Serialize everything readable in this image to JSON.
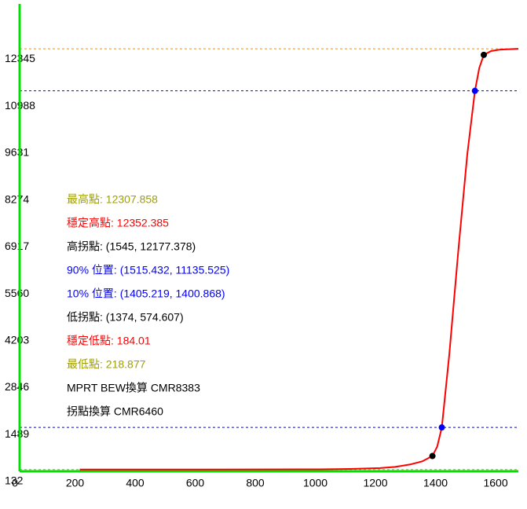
{
  "chart_data": {
    "type": "line",
    "x": [
      200,
      400,
      600,
      800,
      1000,
      1100,
      1200,
      1250,
      1300,
      1340,
      1374,
      1390,
      1405.219,
      1430,
      1460,
      1490,
      1515.432,
      1530,
      1545,
      1570,
      1600,
      1660
    ],
    "series": [
      {
        "color": "#ff0000",
        "values": [
          184,
          184,
          184,
          185,
          190,
          200,
          225,
          260,
          330,
          420,
          574.607,
          850,
          1400.868,
          3500,
          6500,
          9300,
          11135.525,
          11800,
          12177.378,
          12290,
          12330,
          12352
        ]
      }
    ],
    "points": [
      {
        "x": 1374,
        "y": 574.607,
        "color": "#000000"
      },
      {
        "x": 1405.219,
        "y": 1400.868,
        "color": "#0000ff"
      },
      {
        "x": 1515.432,
        "y": 11135.525,
        "color": "#0000ff"
      },
      {
        "x": 1545,
        "y": 12177.378,
        "color": "#000000"
      }
    ],
    "hlines": [
      {
        "value": 12352.385,
        "color": "#ff8c00"
      },
      {
        "value": 11135.525,
        "color": "#0000ff"
      },
      {
        "value": 1400.868,
        "color": "#0000ff"
      },
      {
        "value": 184.01,
        "color": "#ff8c00"
      }
    ],
    "annotations": [
      {
        "text": "最高點: 12307.858",
        "color": "#a0a000"
      },
      {
        "text": "穩定高點: 12352.385",
        "color": "#ff0000"
      },
      {
        "text": "高拐點: (1545, 12177.378)",
        "color": "#000000"
      },
      {
        "text": "90% 位置: (1515.432, 11135.525)",
        "color": "#0000ff"
      },
      {
        "text": "10% 位置: (1405.219, 1400.868)",
        "color": "#0000ff"
      },
      {
        "text": "低拐點: (1374, 574.607)",
        "color": "#000000"
      },
      {
        "text": "穩定低點: 184.01",
        "color": "#ff0000"
      },
      {
        "text": "最低點: 218.877",
        "color": "#a0a000"
      },
      {
        "text": "MPRT BEW換算 CMR8383",
        "color": "#000000"
      },
      {
        "text": "拐點換算 CMR6460",
        "color": "#000000"
      }
    ],
    "xlim": [
      0,
      1660
    ],
    "xticks": [
      0,
      200,
      400,
      600,
      800,
      1000,
      1200,
      1400,
      1600
    ],
    "ylim": [
      132,
      13650
    ],
    "yticks": [
      132,
      1489,
      2846,
      4203,
      5560,
      6917,
      8274,
      9631,
      10988,
      12345
    ],
    "axis_color": "#00e000"
  }
}
